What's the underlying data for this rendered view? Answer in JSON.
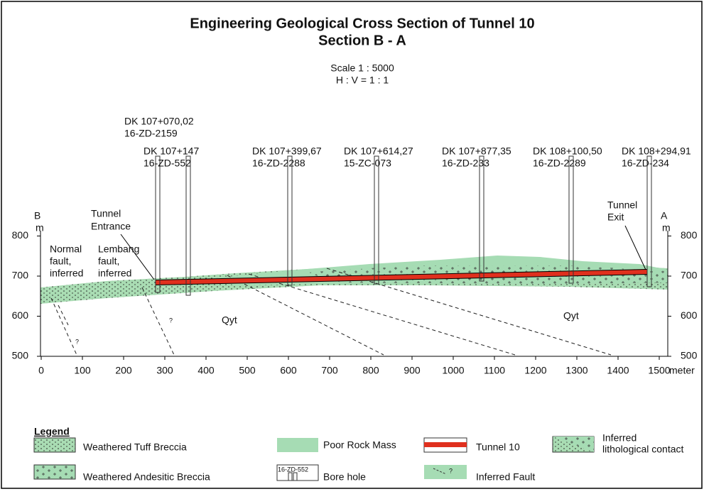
{
  "header": {
    "title": "Engineering Geological Cross Section of Tunnel 10",
    "subtitle": "Section B - A",
    "scale": "Scale 1 : 5000",
    "ratio": "H : V = 1 : 1"
  },
  "axes": {
    "left_letter": "B",
    "left_unit": "m",
    "right_letter": "A",
    "right_unit": "m",
    "yticks": [
      800,
      700,
      600,
      500
    ],
    "xticks": [
      0,
      100,
      200,
      300,
      400,
      500,
      600,
      700,
      800,
      900,
      1000,
      1100,
      1200,
      1300,
      1400,
      1500
    ],
    "x_unit": "meter"
  },
  "boreholes": [
    {
      "chainage": "DK 107+070,02",
      "id": "16-ZD-2159"
    },
    {
      "chainage": "DK 107+147",
      "id": "16-ZD-552"
    },
    {
      "chainage": "DK 107+399,67",
      "id": "16-ZD-2288"
    },
    {
      "chainage": "DK 107+614,27",
      "id": "15-ZC-073"
    },
    {
      "chainage": "DK 107+877,35",
      "id": "16-ZD-233"
    },
    {
      "chainage": "DK 108+100,50",
      "id": "16-ZD-2289"
    },
    {
      "chainage": "DK 108+294,91",
      "id": "16-ZD-234"
    }
  ],
  "annotations": {
    "tunnel_entrance": [
      "Tunnel",
      "Entrance"
    ],
    "tunnel_exit": [
      "Tunnel",
      "Exit"
    ],
    "normal_fault": [
      "Normal",
      "fault,",
      "inferred"
    ],
    "lembang_fault": [
      "Lembang",
      "fault,",
      "inferred"
    ],
    "unit_left": "Qyt",
    "unit_right": "Qyt",
    "query_marks": [
      "?",
      "?"
    ]
  },
  "legend": {
    "title": "Legend",
    "weathered_tuff_breccia": "Weathered Tuff Breccia",
    "weathered_andesitic_breccia": "Weathered Andesitic Breccia",
    "poor_rock_mass": "Poor Rock Mass",
    "bore_hole": "Bore hole",
    "bore_hole_sample": "16-ZD-552",
    "tunnel": "Tunnel 10",
    "inferred_fault": "Inferred Fault",
    "fault_query": "?",
    "inferred_contact": [
      "Inferred",
      "lithological contact"
    ]
  }
}
